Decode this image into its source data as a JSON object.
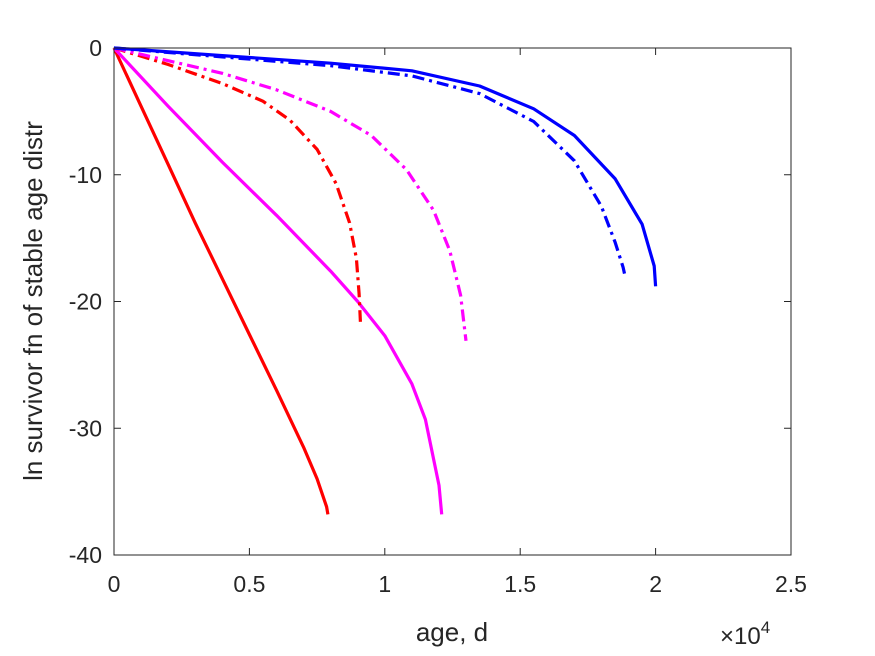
{
  "chart_data": {
    "type": "line",
    "title": "",
    "xlabel": "age, d",
    "ylabel": "ln survivor fn of stable age distr",
    "x_exponent_label": {
      "base": "×10",
      "exponent": "4"
    },
    "xlim": [
      0,
      25000
    ],
    "ylim": [
      -40,
      0
    ],
    "grid": false,
    "legend": "none",
    "x_ticks": [
      0,
      5000,
      10000,
      15000,
      20000,
      25000
    ],
    "x_tick_labels": [
      "0",
      "0.5",
      "1",
      "1.5",
      "2",
      "2.5"
    ],
    "y_ticks": [
      0,
      -10,
      -20,
      -30,
      -40
    ],
    "y_tick_labels": [
      "0",
      "-10",
      "-20",
      "-30",
      "-40"
    ],
    "series": [
      {
        "color": "#ff0000",
        "style": "solid",
        "x": [
          0,
          1000,
          2000,
          3000,
          4000,
          5000,
          6000,
          7000,
          7500,
          7850,
          7900
        ],
        "y": [
          0,
          -4.6,
          -9.2,
          -13.8,
          -18.2,
          -22.6,
          -27.0,
          -31.5,
          -34.0,
          -36.2,
          -36.8
        ]
      },
      {
        "color": "#ff00ff",
        "style": "solid",
        "x": [
          0,
          2000,
          4000,
          6000,
          8000,
          9000,
          10000,
          11000,
          11500,
          12000,
          12100
        ],
        "y": [
          0,
          -4.6,
          -9.0,
          -13.2,
          -17.6,
          -20.0,
          -22.7,
          -26.5,
          -29.3,
          -34.5,
          -36.8
        ]
      },
      {
        "color": "#ff0000",
        "style": "dashdot",
        "x": [
          0,
          2000,
          4000,
          5500,
          6500,
          7500,
          8200,
          8700,
          8950,
          9050,
          9100
        ],
        "y": [
          0,
          -1.3,
          -2.8,
          -4.2,
          -5.7,
          -8.0,
          -10.7,
          -13.8,
          -16.6,
          -19.4,
          -21.6
        ]
      },
      {
        "color": "#ff00ff",
        "style": "dashdot",
        "x": [
          0,
          2000,
          4000,
          6000,
          8000,
          9500,
          10800,
          11800,
          12400,
          12800,
          13000
        ],
        "y": [
          0,
          -1.0,
          -2.0,
          -3.3,
          -5.0,
          -6.9,
          -9.6,
          -12.8,
          -16.0,
          -19.5,
          -23.1
        ]
      },
      {
        "color": "#0000ff",
        "style": "dashdot",
        "x": [
          0,
          4000,
          8000,
          11000,
          13500,
          15500,
          17000,
          18000,
          18500,
          18800,
          18850
        ],
        "y": [
          0,
          -0.7,
          -1.4,
          -2.2,
          -3.6,
          -5.8,
          -8.9,
          -12.5,
          -15.3,
          -17.3,
          -17.8
        ]
      },
      {
        "color": "#0000ff",
        "style": "solid",
        "x": [
          0,
          4000,
          8000,
          11000,
          13500,
          15500,
          17000,
          18500,
          19500,
          19950,
          20000
        ],
        "y": [
          0,
          -0.6,
          -1.2,
          -1.8,
          -3.0,
          -4.8,
          -6.9,
          -10.3,
          -13.9,
          -17.2,
          -18.8
        ]
      }
    ]
  }
}
